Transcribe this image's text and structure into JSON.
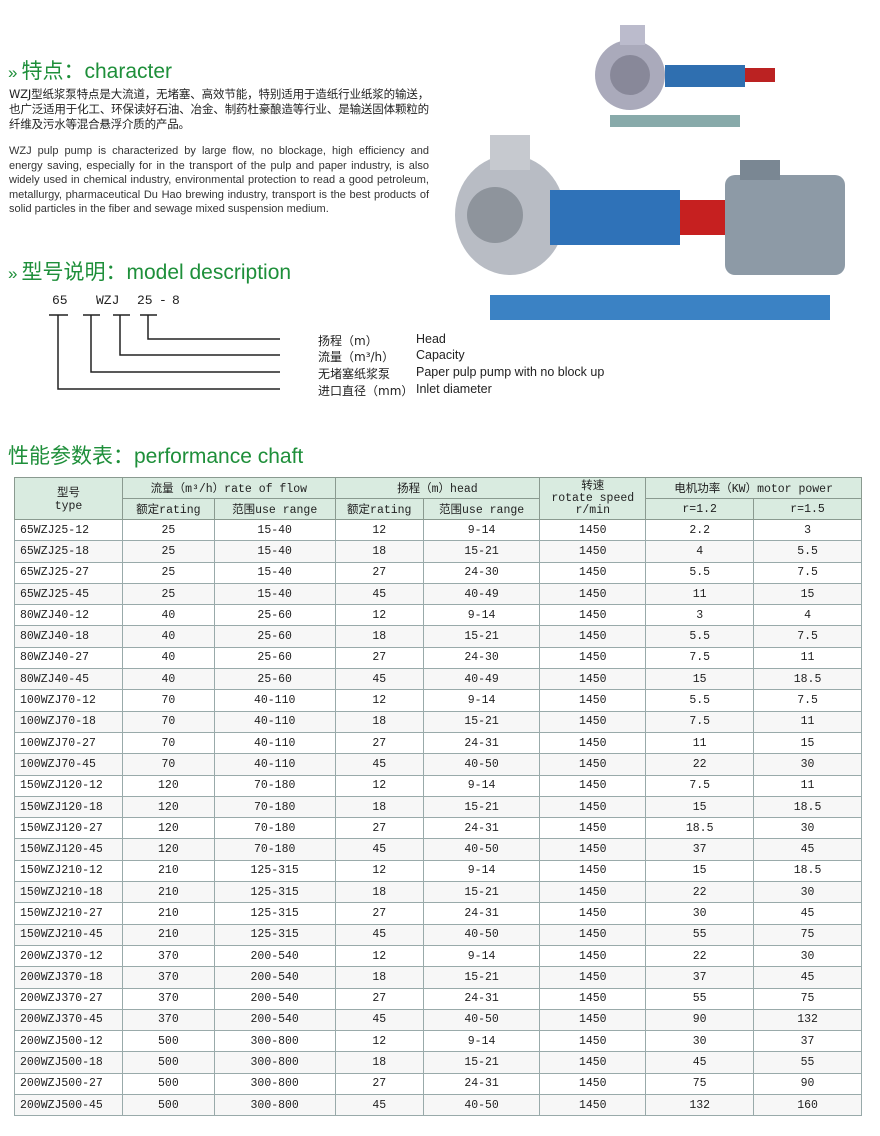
{
  "character": {
    "arrow": "»",
    "title": "特点：character",
    "text_zh": "WZJ型纸浆泵特点是大流道，无堵塞、高效节能，特别适用于造纸行业纸浆的输送，也广泛适用于化工、环保读好石油、冶金、制药杜豪酿造等行业、是输送固体颗粒的纤维及污水等混合悬浮介质的产品。",
    "text_en": "WZJ pulp pump is characterized by large flow, no blockage, high efficiency and energy saving, especially for in the transport of the pulp and paper industry, is also widely used in chemical industry, environmental protection to read a good petroleum, metallurgy, pharmaceutical Du Hao brewing industry, transport is the best products of solid particles in the fiber and sewage mixed suspension medium."
  },
  "model": {
    "arrow": "»",
    "title": "型号说明：model description",
    "code": [
      "65",
      "WZJ",
      "25",
      "-",
      "8"
    ],
    "legend": [
      {
        "zh": "扬程（m）",
        "en": "Head"
      },
      {
        "zh": "流量（m³/h）",
        "en": "Capacity"
      },
      {
        "zh": "无堵塞纸浆泵",
        "en": "Paper pulp pump with no block up"
      },
      {
        "zh": "进口直径（mm）",
        "en": "Inlet diameter"
      }
    ]
  },
  "performance": {
    "title": "性能参数表：performance chaft",
    "headers": {
      "type_zh": "型号",
      "type_en": "type",
      "flow": "流量（m³/h）rate of flow",
      "head": "扬程（m）head",
      "speed_zh": "转速",
      "speed_en": "rotate speed r/min",
      "power": "电机功率（KW）motor power",
      "rating": "额定rating",
      "range": "范围use range",
      "r12": "r=1.2",
      "r15": "r=1.5"
    },
    "rows": [
      [
        "65WZJ25-12",
        "25",
        "15-40",
        "12",
        "9-14",
        "1450",
        "2.2",
        "3"
      ],
      [
        "65WZJ25-18",
        "25",
        "15-40",
        "18",
        "15-21",
        "1450",
        "4",
        "5.5"
      ],
      [
        "65WZJ25-27",
        "25",
        "15-40",
        "27",
        "24-30",
        "1450",
        "5.5",
        "7.5"
      ],
      [
        "65WZJ25-45",
        "25",
        "15-40",
        "45",
        "40-49",
        "1450",
        "11",
        "15"
      ],
      [
        "80WZJ40-12",
        "40",
        "25-60",
        "12",
        "9-14",
        "1450",
        "3",
        "4"
      ],
      [
        "80WZJ40-18",
        "40",
        "25-60",
        "18",
        "15-21",
        "1450",
        "5.5",
        "7.5"
      ],
      [
        "80WZJ40-27",
        "40",
        "25-60",
        "27",
        "24-30",
        "1450",
        "7.5",
        "11"
      ],
      [
        "80WZJ40-45",
        "40",
        "25-60",
        "45",
        "40-49",
        "1450",
        "15",
        "18.5"
      ],
      [
        "100WZJ70-12",
        "70",
        "40-110",
        "12",
        "9-14",
        "1450",
        "5.5",
        "7.5"
      ],
      [
        "100WZJ70-18",
        "70",
        "40-110",
        "18",
        "15-21",
        "1450",
        "7.5",
        "11"
      ],
      [
        "100WZJ70-27",
        "70",
        "40-110",
        "27",
        "24-31",
        "1450",
        "11",
        "15"
      ],
      [
        "100WZJ70-45",
        "70",
        "40-110",
        "45",
        "40-50",
        "1450",
        "22",
        "30"
      ],
      [
        "150WZJ120-12",
        "120",
        "70-180",
        "12",
        "9-14",
        "1450",
        "7.5",
        "11"
      ],
      [
        "150WZJ120-18",
        "120",
        "70-180",
        "18",
        "15-21",
        "1450",
        "15",
        "18.5"
      ],
      [
        "150WZJ120-27",
        "120",
        "70-180",
        "27",
        "24-31",
        "1450",
        "18.5",
        "30"
      ],
      [
        "150WZJ120-45",
        "120",
        "70-180",
        "45",
        "40-50",
        "1450",
        "37",
        "45"
      ],
      [
        "150WZJ210-12",
        "210",
        "125-315",
        "12",
        "9-14",
        "1450",
        "15",
        "18.5"
      ],
      [
        "150WZJ210-18",
        "210",
        "125-315",
        "18",
        "15-21",
        "1450",
        "22",
        "30"
      ],
      [
        "150WZJ210-27",
        "210",
        "125-315",
        "27",
        "24-31",
        "1450",
        "30",
        "45"
      ],
      [
        "150WZJ210-45",
        "210",
        "125-315",
        "45",
        "40-50",
        "1450",
        "55",
        "75"
      ],
      [
        "200WZJ370-12",
        "370",
        "200-540",
        "12",
        "9-14",
        "1450",
        "22",
        "30"
      ],
      [
        "200WZJ370-18",
        "370",
        "200-540",
        "18",
        "15-21",
        "1450",
        "37",
        "45"
      ],
      [
        "200WZJ370-27",
        "370",
        "200-540",
        "27",
        "24-31",
        "1450",
        "55",
        "75"
      ],
      [
        "200WZJ370-45",
        "370",
        "200-540",
        "45",
        "40-50",
        "1450",
        "90",
        "132"
      ],
      [
        "200WZJ500-12",
        "500",
        "300-800",
        "12",
        "9-14",
        "1450",
        "30",
        "37"
      ],
      [
        "200WZJ500-18",
        "500",
        "300-800",
        "18",
        "15-21",
        "1450",
        "45",
        "55"
      ],
      [
        "200WZJ500-27",
        "500",
        "300-800",
        "27",
        "24-31",
        "1450",
        "75",
        "90"
      ],
      [
        "200WZJ500-45",
        "500",
        "300-800",
        "45",
        "40-50",
        "1450",
        "132",
        "160"
      ]
    ]
  }
}
